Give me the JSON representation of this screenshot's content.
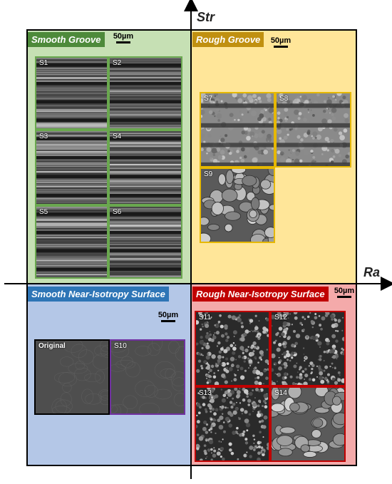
{
  "axes": {
    "y_label": "Str",
    "x_label": "Ra"
  },
  "quadrants": {
    "smooth_groove": {
      "title": "Smooth Groove",
      "title_color": "#4d8a3a",
      "bg": "#c6e0b4",
      "tile_border": "#6aa84f",
      "scale": "50µm",
      "samples": [
        "S1",
        "S2",
        "S3",
        "S4",
        "S5",
        "S6"
      ]
    },
    "rough_groove": {
      "title": "Rough Groove",
      "title_color": "#c09010",
      "bg": "#ffe699",
      "tile_border": "#e6b800",
      "scale": "50µm",
      "samples": [
        "S7",
        "S8",
        "S9"
      ]
    },
    "smooth_isotropy": {
      "title": "Smooth Near-Isotropy Surface",
      "title_color": "#2e75b6",
      "bg": "#b4c7e7",
      "scale": "50µm",
      "samples": [
        "Original",
        "S10"
      ],
      "tile_borders": [
        "#000000",
        "#7030a0"
      ]
    },
    "rough_isotropy": {
      "title": "Rough Near-Isotropy Surface",
      "title_color": "#c00000",
      "bg": "#f08080",
      "tile_border": "#c00000",
      "scale": "50µm",
      "samples": [
        "S11",
        "S12",
        "S13",
        "S14"
      ]
    }
  }
}
